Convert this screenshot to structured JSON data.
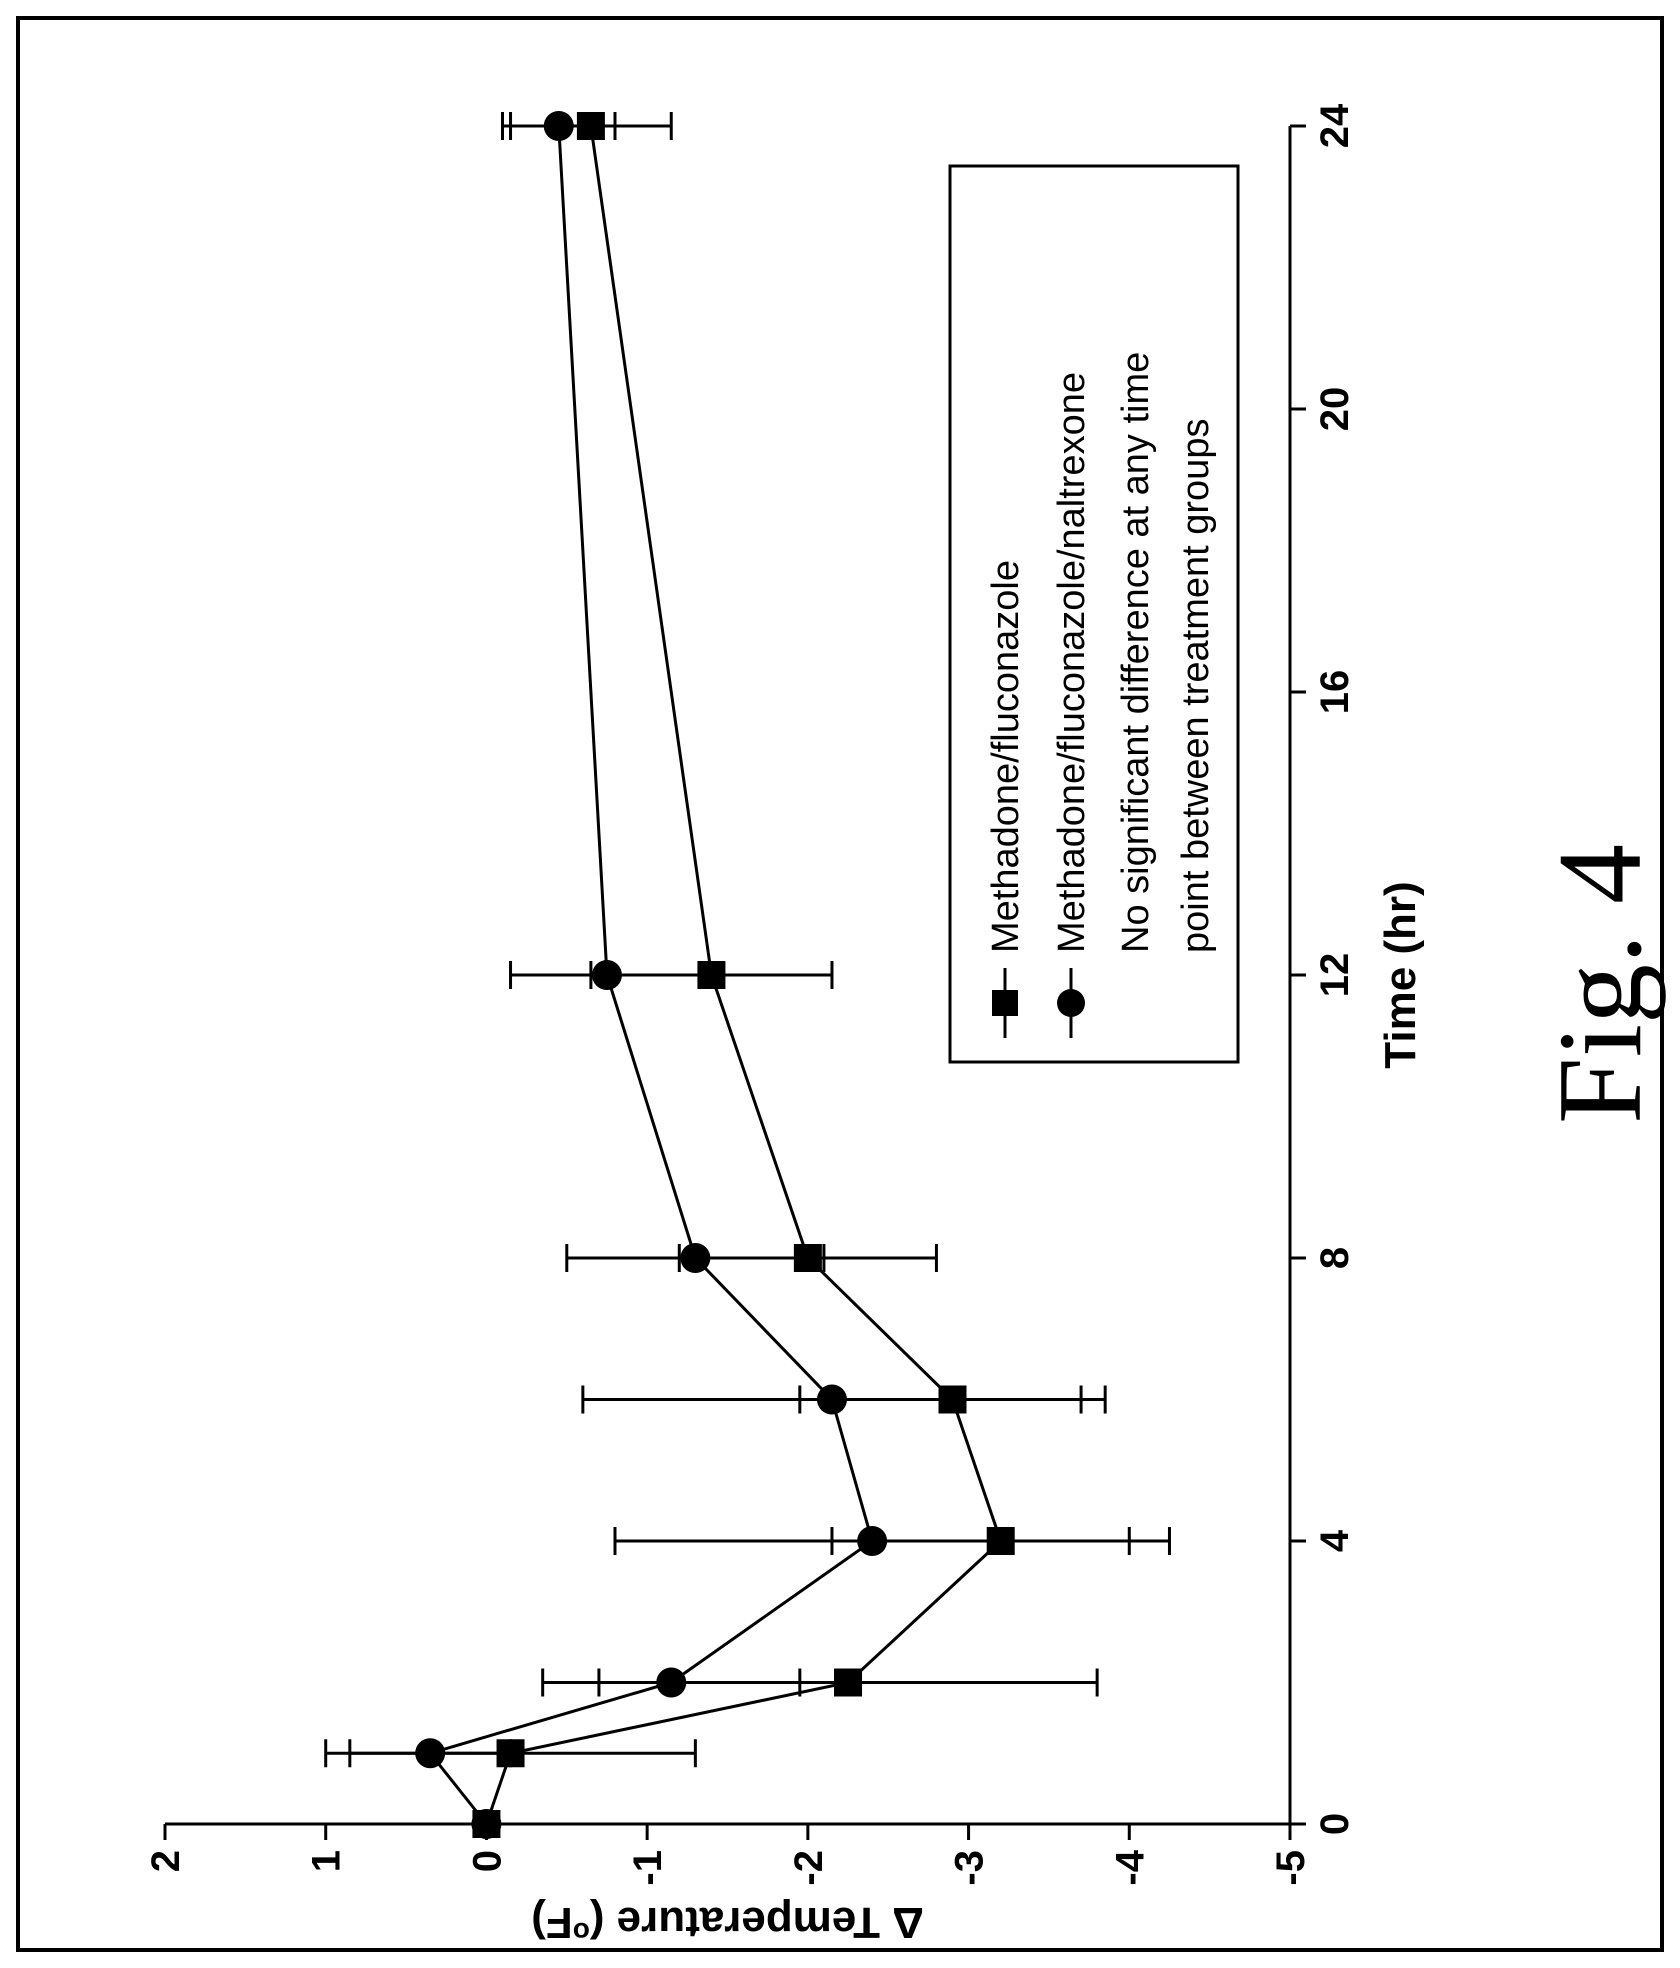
{
  "figure": {
    "caption": "Fig. 4"
  },
  "chart_data": {
    "type": "line",
    "xlabel": "Time (hr)",
    "ylabel_main": "Δ Temperature (",
    "ylabel_sup": "o",
    "ylabel_end": "F)",
    "x_ticks": [
      "0",
      "4",
      "8",
      "12",
      "16",
      "20",
      "24"
    ],
    "y_ticks": [
      "2",
      "1",
      "0",
      "-1",
      "-2",
      "-3",
      "-4",
      "-5"
    ],
    "xlim": [
      0,
      24
    ],
    "ylim": [
      -5,
      2
    ],
    "grid": false,
    "legend_position": "upper-right",
    "x": [
      0,
      1,
      2,
      4,
      6,
      8,
      12,
      24
    ],
    "series": [
      {
        "name": "Methadone/fluconazole",
        "marker": "square",
        "values": [
          0.0,
          -0.15,
          -2.25,
          -3.2,
          -2.9,
          -2.0,
          -1.4,
          -0.65
        ],
        "error_bars": [
          0.0,
          1.15,
          1.55,
          1.05,
          0.95,
          0.8,
          0.75,
          0.5
        ]
      },
      {
        "name": "Methadone/fluconazole/naltrexone",
        "marker": "circle",
        "values": [
          0.0,
          0.35,
          -1.15,
          -2.4,
          -2.15,
          -1.3,
          -0.75,
          -0.45
        ],
        "error_bars": [
          0.0,
          0.5,
          0.8,
          1.6,
          1.55,
          0.8,
          0.6,
          0.35
        ]
      }
    ],
    "legend_note_lines": [
      "No significant difference at any time",
      "point between treatment groups"
    ]
  }
}
